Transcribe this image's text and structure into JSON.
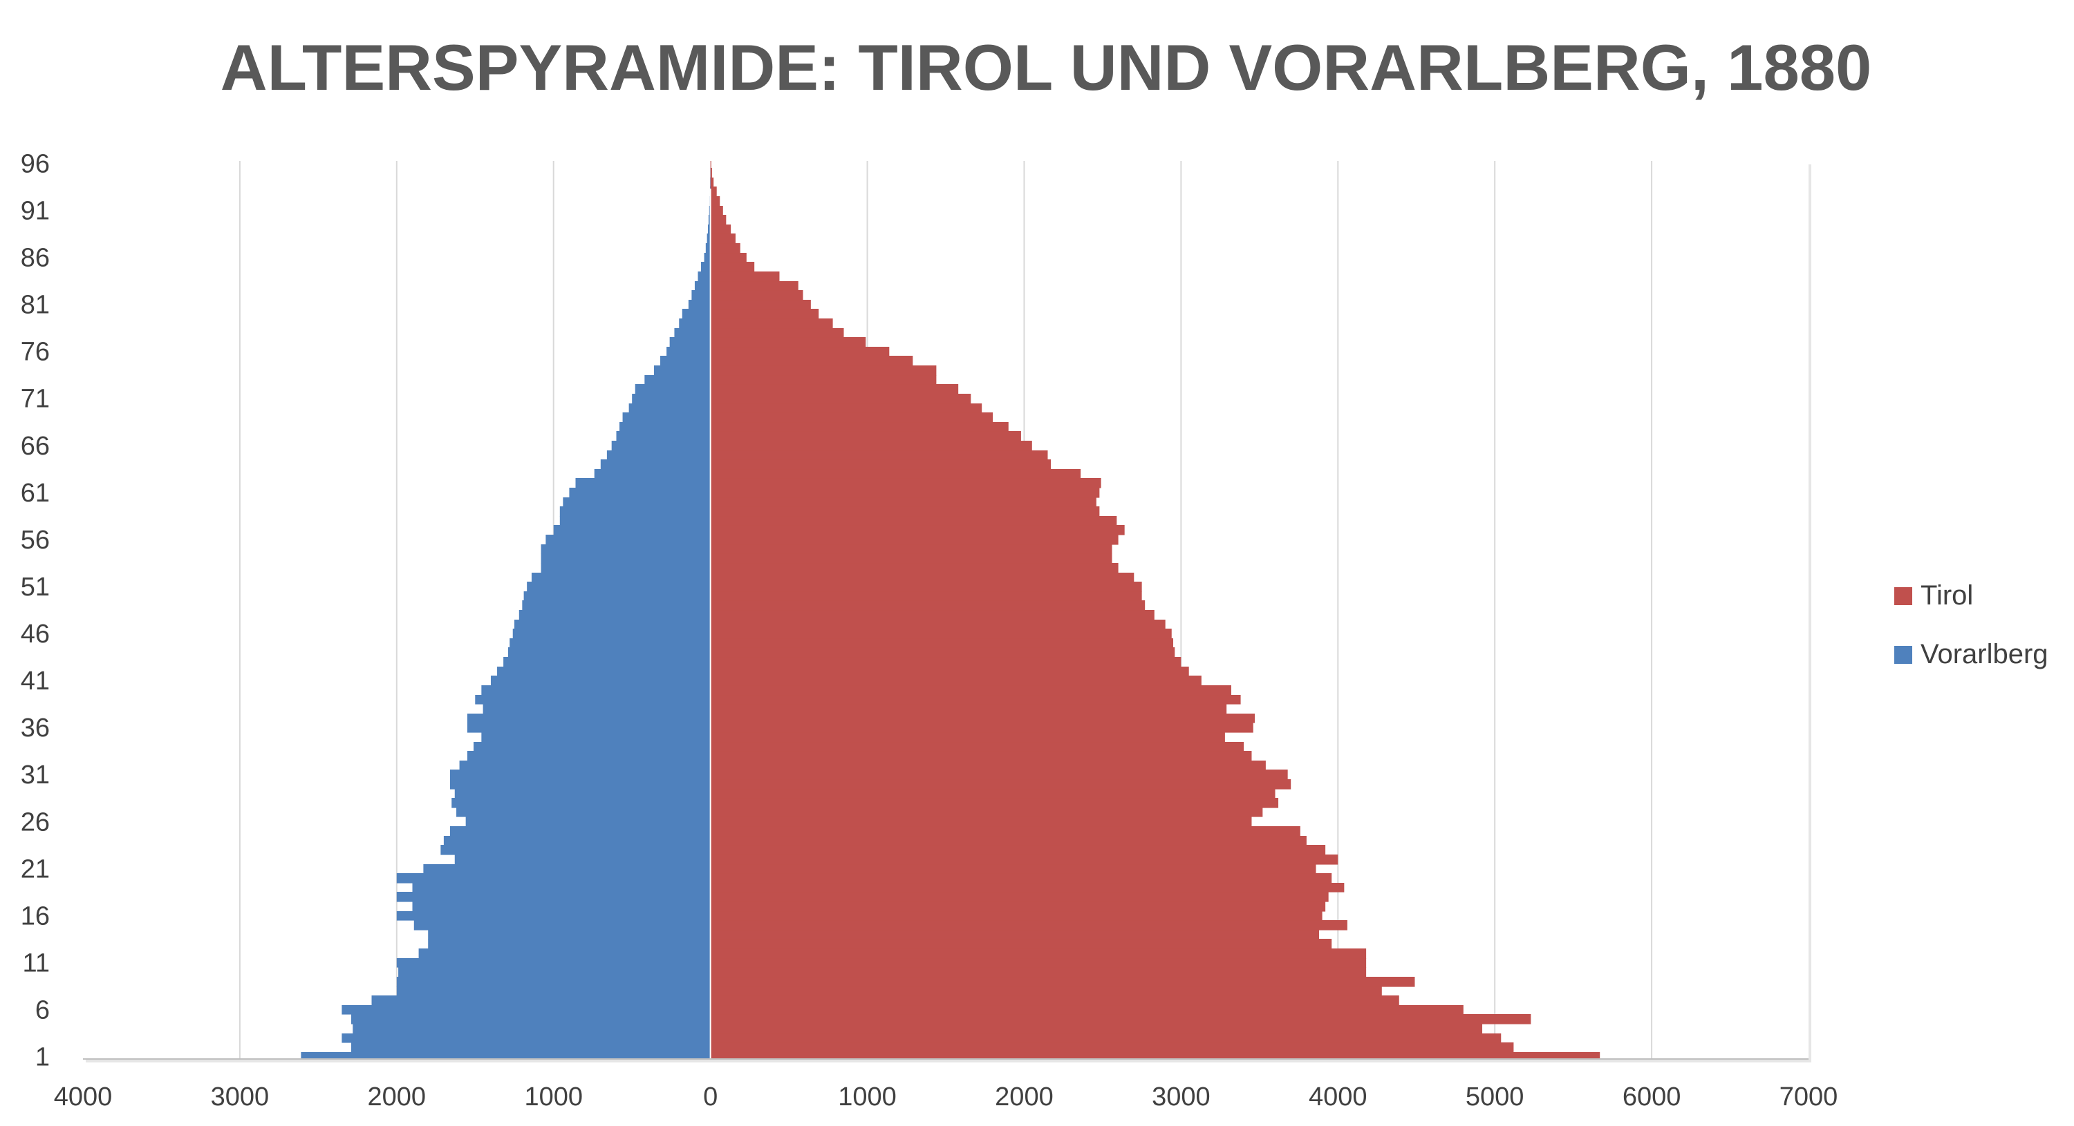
{
  "chart_data": {
    "type": "bar",
    "orientation": "horizontal",
    "layout": "population-pyramid",
    "title": "ALTERSPYRAMIDE: TIROL UND VORARLBERG, 1880",
    "xlabel": "",
    "ylabel": "",
    "x_tick_labels": [
      "4000",
      "3000",
      "2000",
      "1000",
      "0",
      "1000",
      "2000",
      "3000",
      "4000",
      "5000",
      "6000",
      "7000"
    ],
    "y_tick_labels": [
      "96",
      "91",
      "86",
      "81",
      "76",
      "71",
      "66",
      "61",
      "56",
      "51",
      "46",
      "41",
      "36",
      "31",
      "26",
      "21",
      "16",
      "11",
      "6",
      "1"
    ],
    "xlim": [
      -4000,
      7000
    ],
    "ylim": [
      1,
      96
    ],
    "grid": "vertical",
    "legend_position": "right",
    "categories": [
      1,
      2,
      3,
      4,
      5,
      6,
      7,
      8,
      9,
      10,
      11,
      12,
      13,
      14,
      15,
      16,
      17,
      18,
      19,
      20,
      21,
      22,
      23,
      24,
      25,
      26,
      27,
      28,
      29,
      30,
      31,
      32,
      33,
      34,
      35,
      36,
      37,
      38,
      39,
      40,
      41,
      42,
      43,
      44,
      45,
      46,
      47,
      48,
      49,
      50,
      51,
      52,
      53,
      54,
      55,
      56,
      57,
      58,
      59,
      60,
      61,
      62,
      63,
      64,
      65,
      66,
      67,
      68,
      69,
      70,
      71,
      72,
      73,
      74,
      75,
      76,
      77,
      78,
      79,
      80,
      81,
      82,
      83,
      84,
      85,
      86,
      87,
      88,
      89,
      90,
      91,
      92,
      93,
      94,
      95,
      96
    ],
    "series": [
      {
        "name": "Tirol",
        "color": "#C0504D",
        "direction": "right",
        "values": [
          5670,
          5120,
          5040,
          4920,
          5230,
          4800,
          4390,
          4280,
          4490,
          4180,
          4180,
          4180,
          3960,
          3880,
          4060,
          3900,
          3920,
          3940,
          4040,
          3960,
          3860,
          4000,
          3920,
          3800,
          3760,
          3450,
          3520,
          3620,
          3600,
          3700,
          3680,
          3540,
          3450,
          3400,
          3280,
          3460,
          3470,
          3290,
          3380,
          3320,
          3130,
          3050,
          3000,
          2960,
          2950,
          2940,
          2900,
          2830,
          2770,
          2750,
          2750,
          2700,
          2600,
          2560,
          2560,
          2600,
          2640,
          2590,
          2480,
          2460,
          2480,
          2490,
          2360,
          2170,
          2150,
          2050,
          1980,
          1900,
          1800,
          1730,
          1660,
          1580,
          1440,
          1440,
          1290,
          1140,
          990,
          850,
          780,
          690,
          640,
          590,
          560,
          440,
          280,
          230,
          190,
          160,
          130,
          100,
          80,
          60,
          40,
          20,
          10,
          5
        ]
      },
      {
        "name": "Vorarlberg",
        "color": "#4F81BD",
        "direction": "left",
        "values": [
          2610,
          2290,
          2350,
          2280,
          2290,
          2350,
          2160,
          2000,
          2000,
          1990,
          2000,
          1860,
          1800,
          1800,
          1890,
          2000,
          1900,
          2000,
          1900,
          2000,
          1830,
          1630,
          1720,
          1700,
          1660,
          1560,
          1620,
          1650,
          1630,
          1660,
          1660,
          1600,
          1550,
          1510,
          1460,
          1550,
          1550,
          1450,
          1500,
          1460,
          1400,
          1360,
          1320,
          1290,
          1280,
          1260,
          1250,
          1220,
          1200,
          1190,
          1170,
          1140,
          1080,
          1080,
          1080,
          1050,
          1000,
          960,
          960,
          940,
          900,
          860,
          740,
          700,
          660,
          630,
          600,
          580,
          560,
          520,
          500,
          480,
          420,
          360,
          320,
          280,
          260,
          230,
          200,
          180,
          140,
          120,
          100,
          80,
          60,
          40,
          30,
          22,
          16,
          12,
          8,
          5,
          3,
          2,
          1,
          0
        ]
      }
    ]
  }
}
